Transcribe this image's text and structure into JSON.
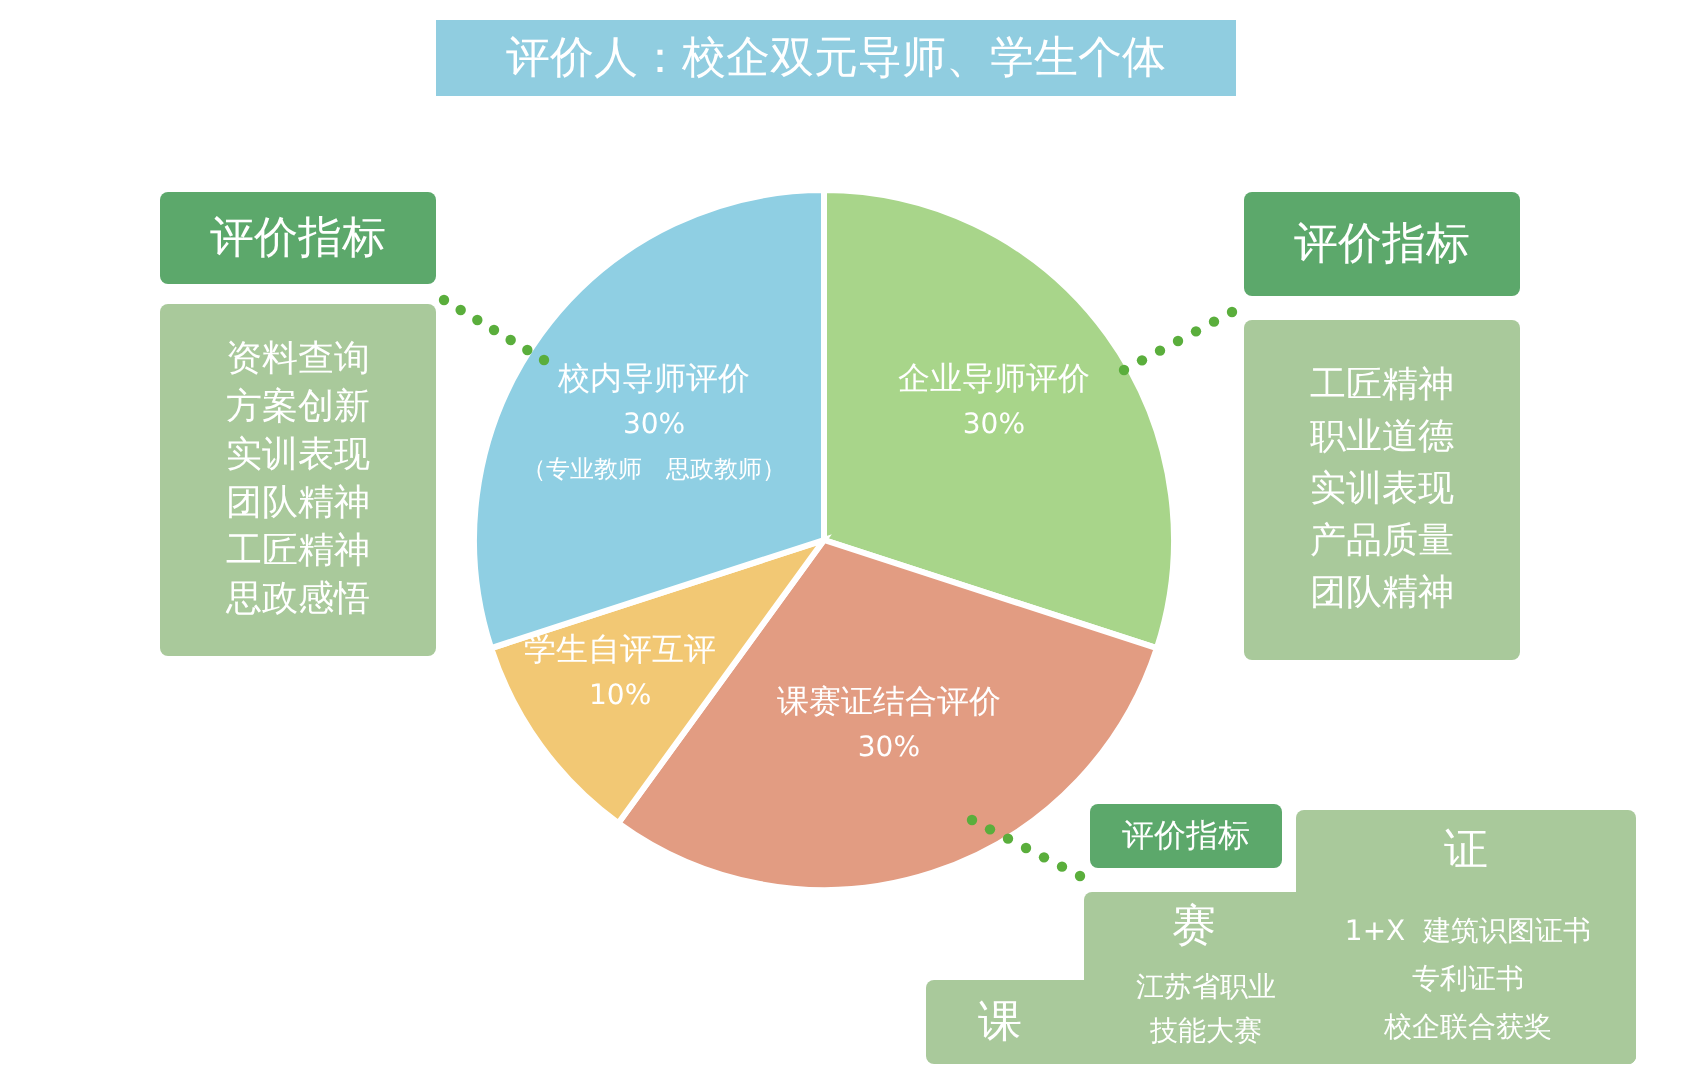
{
  "chart_data": {
    "type": "pie",
    "title": "评价人：校企双元导师、学生个体",
    "categories": [
      "企业导师评价",
      "课赛证结合评价",
      "学生自评互评",
      "校内导师评价"
    ],
    "values": [
      30,
      30,
      10,
      30
    ],
    "colors": [
      "#a8d58a",
      "#e29c82",
      "#f2c874",
      "#8fcfe3"
    ],
    "value_labels": [
      "30%",
      "30%",
      "10%",
      "30%"
    ],
    "annotations": [
      {
        "text": "（专业教师　思政教师）",
        "x": "校内导师评价"
      },
      "评价指标",
      "资料查询",
      "方案创新",
      "实训表现",
      "团队精神",
      "工匠精神",
      "思政感悟",
      "评价指标",
      "工匠精神",
      "职业道德",
      "实训表现",
      "产品质量",
      "团队精神",
      "评价指标",
      "课",
      "赛",
      "江苏省职业技能大赛",
      "证",
      "1+X  建筑识图证书",
      "专利证书",
      "校企联合获奖"
    ]
  }
}
